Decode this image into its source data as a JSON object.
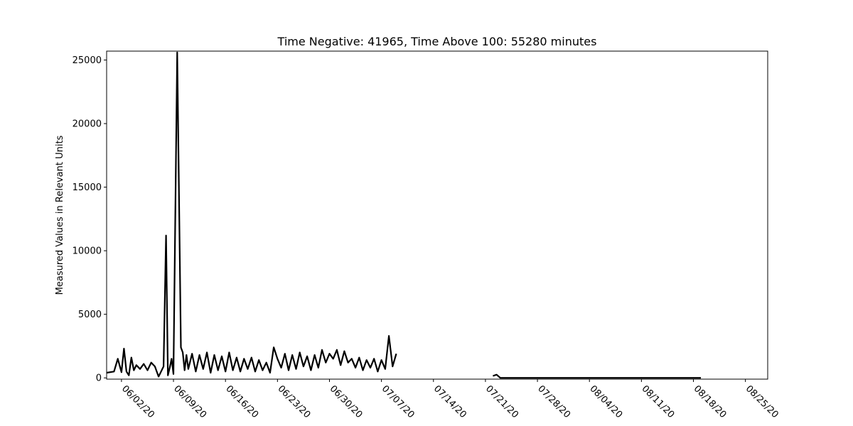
{
  "chart_data": {
    "type": "line",
    "title": "Time Negative: 41965, Time Above 100: 55280 minutes",
    "xlabel": "",
    "ylabel": "Measured Values in Relevant Units",
    "x_ticks": [
      "06/02/20",
      "06/09/20",
      "06/16/20",
      "06/23/20",
      "06/30/20",
      "07/07/20",
      "07/14/20",
      "07/21/20",
      "07/28/20",
      "08/04/20",
      "08/11/20",
      "08/18/20",
      "08/25/20"
    ],
    "y_ticks": [
      0,
      5000,
      10000,
      15000,
      20000,
      25000
    ],
    "xlim": [
      "2020-05-31",
      "2020-08-28"
    ],
    "ylim": [
      -100,
      25700
    ],
    "grid": false,
    "line_color": "#000000",
    "series": [
      {
        "x": [
          "2020-05-31",
          "2020-06-01",
          "2020-06-01",
          "2020-06-02",
          "2020-06-02",
          "2020-06-02",
          "2020-06-03",
          "2020-06-03",
          "2020-06-03",
          "2020-06-04",
          "2020-06-04",
          "2020-06-05",
          "2020-06-05",
          "2020-06-06",
          "2020-06-06",
          "2020-06-07",
          "2020-06-07",
          "2020-06-07",
          "2020-06-08",
          "2020-06-08",
          "2020-06-08",
          "2020-06-08",
          "2020-06-09",
          "2020-06-09",
          "2020-06-10",
          "2020-06-10",
          "2020-06-10",
          "2020-06-10",
          "2020-06-11",
          "2020-06-11",
          "2020-06-12",
          "2020-06-12",
          "2020-06-13",
          "2020-06-13",
          "2020-06-14",
          "2020-06-14",
          "2020-06-15",
          "2020-06-15",
          "2020-06-16",
          "2020-06-16",
          "2020-06-17",
          "2020-06-17",
          "2020-06-18",
          "2020-06-18",
          "2020-06-19",
          "2020-06-19",
          "2020-06-20",
          "2020-06-20",
          "2020-06-21",
          "2020-06-21",
          "2020-06-22",
          "2020-06-22",
          "2020-06-23",
          "2020-06-23",
          "2020-06-24",
          "2020-06-24",
          "2020-06-25",
          "2020-06-25",
          "2020-06-26",
          "2020-06-26",
          "2020-06-27",
          "2020-06-27",
          "2020-06-28",
          "2020-06-28",
          "2020-06-29",
          "2020-06-29",
          "2020-06-30",
          "2020-06-30",
          "2020-07-01",
          "2020-07-01",
          "2020-07-02",
          "2020-07-02",
          "2020-07-03",
          "2020-07-03",
          "2020-07-04",
          "2020-07-04",
          "2020-07-05",
          "2020-07-05",
          "2020-07-06",
          "2020-07-06",
          "2020-07-07",
          "2020-07-07",
          "2020-07-08",
          "2020-07-08",
          "2020-07-09"
        ],
        "y": [
          400,
          500,
          1500,
          450,
          2300,
          500,
          200,
          1600,
          600,
          1000,
          700,
          1100,
          600,
          1200,
          900,
          100,
          500,
          900,
          11200,
          200,
          800,
          1500,
          300,
          25600,
          2400,
          2000,
          600,
          1800,
          700,
          1900,
          500,
          1800,
          700,
          2000,
          400,
          1800,
          600,
          1700,
          500,
          2000,
          600,
          1600,
          500,
          1500,
          700,
          1600,
          500,
          1400,
          600,
          1200,
          400,
          2400,
          1500,
          800,
          1900,
          600,
          1800,
          700,
          2000,
          900,
          1700,
          600,
          1800,
          800,
          2200,
          1200,
          1900,
          1500,
          2200,
          1000,
          2100,
          1200,
          1500,
          800,
          1600,
          600,
          1400,
          800,
          1500,
          500,
          1400,
          700,
          3300,
          900,
          1900
        ]
      },
      {
        "x": [
          "2020-07-22",
          "2020-07-22",
          "2020-07-23",
          "2020-07-28",
          "2020-08-04",
          "2020-08-11",
          "2020-08-18",
          "2020-08-19"
        ],
        "y": [
          150,
          250,
          0,
          0,
          0,
          0,
          0,
          0
        ]
      }
    ]
  }
}
